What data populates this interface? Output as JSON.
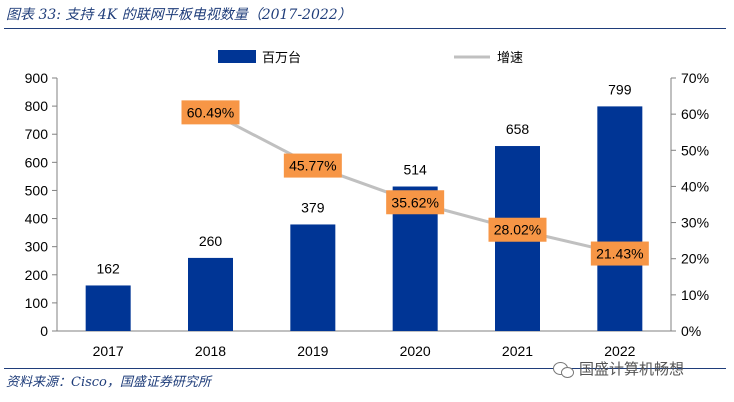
{
  "title": "图表 33:  支持 4K 的联网平板电视数量（2017-2022）",
  "source": "资料来源：Cisco，国盛证券研究所",
  "watermark": "国盛计算机畅想",
  "colors": {
    "bar": "#003595",
    "line": "#c0c0c0",
    "label_bg": "#f79646",
    "title": "#1f3d7a"
  },
  "chart_data": {
    "type": "bar",
    "categories": [
      "2017",
      "2018",
      "2019",
      "2020",
      "2021",
      "2022"
    ],
    "series": [
      {
        "name": "百万台",
        "type": "bar",
        "axis": "left",
        "values": [
          162,
          260,
          379,
          514,
          658,
          799
        ],
        "labels": [
          "162",
          "260",
          "379",
          "514",
          "658",
          "799"
        ]
      },
      {
        "name": "增速",
        "type": "line",
        "axis": "right",
        "values": [
          null,
          60.49,
          45.77,
          35.62,
          28.02,
          21.43
        ],
        "labels": [
          "",
          "60.49%",
          "45.77%",
          "35.62%",
          "28.02%",
          "21.43%"
        ]
      }
    ],
    "y_left": {
      "min": 0,
      "max": 900,
      "ticks": [
        "0",
        "100",
        "200",
        "300",
        "400",
        "500",
        "600",
        "700",
        "800",
        "900"
      ]
    },
    "y_right": {
      "min": 0,
      "max": 70,
      "ticks": [
        "0%",
        "10%",
        "20%",
        "30%",
        "40%",
        "50%",
        "60%",
        "70%"
      ]
    },
    "legend": "top",
    "grid": false
  }
}
